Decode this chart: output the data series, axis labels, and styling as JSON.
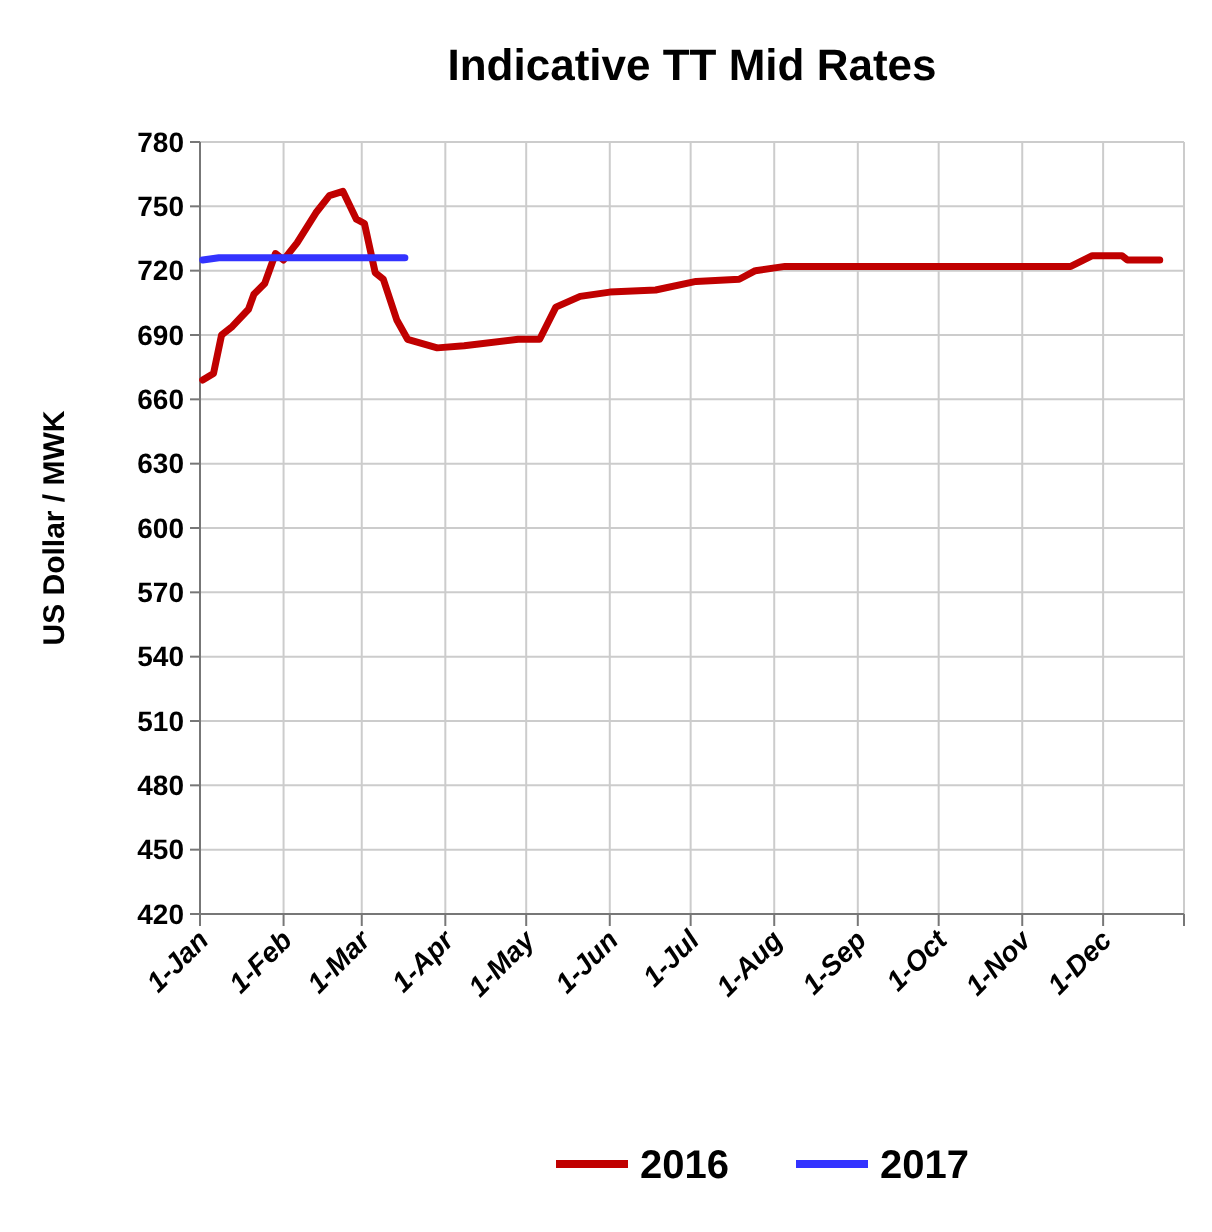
{
  "chart_data": {
    "type": "line",
    "title": "Indicative TT Mid Rates",
    "ylabel": "US Dollar / MWK",
    "xlim": [
      "--01-01",
      "--12-31"
    ],
    "xticks": [
      {
        "value": "--01-01",
        "label": "1-Jan"
      },
      {
        "value": "--02-01",
        "label": "1-Feb"
      },
      {
        "value": "--03-01",
        "label": "1-Mar"
      },
      {
        "value": "--04-01",
        "label": "1-Apr"
      },
      {
        "value": "--05-01",
        "label": "1-May"
      },
      {
        "value": "--06-01",
        "label": "1-Jun"
      },
      {
        "value": "--07-01",
        "label": "1-Jul"
      },
      {
        "value": "--08-01",
        "label": "1-Aug"
      },
      {
        "value": "--09-01",
        "label": "1-Sep"
      },
      {
        "value": "--10-01",
        "label": "1-Oct"
      },
      {
        "value": "--11-01",
        "label": "1-Nov"
      },
      {
        "value": "--12-01",
        "label": "1-Dec"
      }
    ],
    "ylim": [
      420,
      780
    ],
    "yticks": [
      420,
      450,
      480,
      510,
      540,
      570,
      600,
      630,
      660,
      690,
      720,
      750,
      780
    ],
    "grid": true,
    "legend": "bottom",
    "marker": "none",
    "line_style": "solid",
    "series": [
      {
        "name": "2016",
        "color": "#c00000",
        "x": [
          "--01-02",
          "--01-06",
          "--01-09",
          "--01-13",
          "--01-19",
          "--01-21",
          "--01-25",
          "--01-29",
          "--02-01",
          "--02-06",
          "--02-13",
          "--02-18",
          "--02-23",
          "--02-28",
          "--03-02",
          "--03-06",
          "--03-09",
          "--03-14",
          "--03-18",
          "--03-29",
          "--04-08",
          "--04-28",
          "--05-06",
          "--05-12",
          "--05-21",
          "--06-01",
          "--06-18",
          "--07-03",
          "--07-19",
          "--07-25",
          "--08-05",
          "--11-09",
          "--11-19",
          "--11-27",
          "--12-08",
          "--12-10",
          "--12-22"
        ],
        "values": [
          669,
          672,
          690,
          694,
          702,
          709,
          714,
          728,
          725,
          733,
          747,
          755,
          757,
          744,
          742,
          719,
          716,
          697,
          688,
          684,
          685,
          688,
          688,
          703,
          708,
          710,
          711,
          715,
          716,
          720,
          722,
          722,
          722,
          727,
          727,
          725,
          725
        ]
      },
      {
        "name": "2017",
        "color": "#3333ff",
        "x": [
          "--01-02",
          "--01-08",
          "--03-17"
        ],
        "values": [
          725,
          726,
          726
        ]
      }
    ]
  }
}
